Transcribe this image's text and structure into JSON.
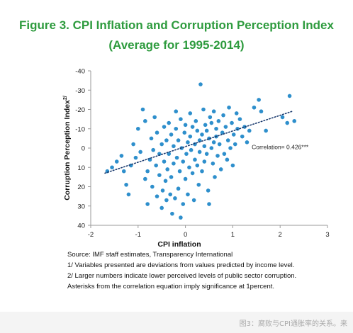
{
  "title": {
    "line1": "Figure 3. CPI Inflation and Corruption Perception Index",
    "line2": "(Average for 1995-2014)"
  },
  "colors": {
    "title": "#2e9b3e",
    "points": "#2e8fcc",
    "trend": "#1a3a6e"
  },
  "chart_data": {
    "type": "scatter",
    "xlabel": "CPI inflation",
    "ylabel": "Corruption Perception Index",
    "ylabel_superscript": "2/",
    "xlim": [
      -2,
      3
    ],
    "ylim": [
      -40,
      40
    ],
    "y_inverted": true,
    "xticks": [
      "-2",
      "-1",
      "0",
      "1",
      "2",
      "3"
    ],
    "yticks": [
      "-40",
      "-30",
      "-20",
      "-10",
      "0",
      "10",
      "20",
      "30",
      "40"
    ],
    "grid": false,
    "annotation": "Correlation=  0.426***",
    "trendline": {
      "style": "dotted",
      "x": [
        -1.7,
        2.25
      ],
      "y": [
        13.0,
        -19.0
      ]
    },
    "points": [
      [
        -1.65,
        12
      ],
      [
        -1.55,
        10
      ],
      [
        -1.45,
        7
      ],
      [
        -1.35,
        4
      ],
      [
        -1.3,
        12
      ],
      [
        -1.25,
        19
      ],
      [
        -1.2,
        24
      ],
      [
        -1.15,
        9
      ],
      [
        -1.1,
        -2
      ],
      [
        -1.05,
        5
      ],
      [
        -1.0,
        -10
      ],
      [
        -0.95,
        2
      ],
      [
        -0.9,
        -20
      ],
      [
        -0.85,
        -14
      ],
      [
        -0.85,
        16
      ],
      [
        -0.8,
        12
      ],
      [
        -0.8,
        29
      ],
      [
        -0.75,
        6
      ],
      [
        -0.72,
        -5
      ],
      [
        -0.7,
        20
      ],
      [
        -0.68,
        1
      ],
      [
        -0.65,
        -16
      ],
      [
        -0.62,
        9
      ],
      [
        -0.6,
        25
      ],
      [
        -0.6,
        -8
      ],
      [
        -0.55,
        3
      ],
      [
        -0.55,
        14
      ],
      [
        -0.5,
        -2
      ],
      [
        -0.5,
        31
      ],
      [
        -0.48,
        22
      ],
      [
        -0.45,
        -11
      ],
      [
        -0.45,
        7
      ],
      [
        -0.42,
        17
      ],
      [
        -0.4,
        -4
      ],
      [
        -0.4,
        27
      ],
      [
        -0.38,
        11
      ],
      [
        -0.35,
        -13
      ],
      [
        -0.35,
        3
      ],
      [
        -0.32,
        24
      ],
      [
        -0.3,
        -7
      ],
      [
        -0.3,
        15
      ],
      [
        -0.28,
        34
      ],
      [
        -0.25,
        -1
      ],
      [
        -0.25,
        8
      ],
      [
        -0.22,
        26
      ],
      [
        -0.2,
        -19
      ],
      [
        -0.2,
        -10
      ],
      [
        -0.18,
        5
      ],
      [
        -0.15,
        21
      ],
      [
        -0.15,
        -4
      ],
      [
        -0.12,
        12
      ],
      [
        -0.1,
        36
      ],
      [
        -0.1,
        -15
      ],
      [
        -0.08,
        0
      ],
      [
        -0.05,
        7
      ],
      [
        -0.05,
        29
      ],
      [
        -0.02,
        -8
      ],
      [
        0.0,
        -12
      ],
      [
        0.0,
        16
      ],
      [
        0.02,
        3
      ],
      [
        0.05,
        -3
      ],
      [
        0.05,
        24
      ],
      [
        0.08,
        10
      ],
      [
        0.1,
        -6
      ],
      [
        0.1,
        -18
      ],
      [
        0.12,
        1
      ],
      [
        0.15,
        13
      ],
      [
        0.15,
        -11
      ],
      [
        0.18,
        27
      ],
      [
        0.2,
        6
      ],
      [
        0.2,
        -2
      ],
      [
        0.22,
        -14
      ],
      [
        0.25,
        9
      ],
      [
        0.25,
        -9
      ],
      [
        0.28,
        19
      ],
      [
        0.3,
        -4
      ],
      [
        0.3,
        2
      ],
      [
        0.32,
        -33
      ],
      [
        0.35,
        -7
      ],
      [
        0.35,
        12
      ],
      [
        0.38,
        -20
      ],
      [
        0.4,
        -1
      ],
      [
        0.4,
        7
      ],
      [
        0.42,
        -12
      ],
      [
        0.45,
        3
      ],
      [
        0.45,
        -9
      ],
      [
        0.48,
        22
      ],
      [
        0.5,
        -5
      ],
      [
        0.5,
        29
      ],
      [
        0.52,
        -16
      ],
      [
        0.55,
        0
      ],
      [
        0.55,
        -13
      ],
      [
        0.58,
        8
      ],
      [
        0.6,
        -3
      ],
      [
        0.6,
        -19
      ],
      [
        0.62,
        15
      ],
      [
        0.65,
        -6
      ],
      [
        0.65,
        -10
      ],
      [
        0.68,
        4
      ],
      [
        0.7,
        -14
      ],
      [
        0.72,
        -2
      ],
      [
        0.75,
        11
      ],
      [
        0.78,
        -8
      ],
      [
        0.8,
        -17
      ],
      [
        0.82,
        3
      ],
      [
        0.85,
        -11
      ],
      [
        0.88,
        6
      ],
      [
        0.9,
        -4
      ],
      [
        0.92,
        -21
      ],
      [
        0.95,
        0
      ],
      [
        0.98,
        -13
      ],
      [
        1.0,
        9
      ],
      [
        1.02,
        -7
      ],
      [
        1.05,
        -2
      ],
      [
        1.08,
        -18
      ],
      [
        1.1,
        -10
      ],
      [
        1.15,
        -15
      ],
      [
        1.2,
        -6
      ],
      [
        1.25,
        -11
      ],
      [
        1.3,
        -3
      ],
      [
        1.35,
        -9
      ],
      [
        1.45,
        -21
      ],
      [
        1.55,
        -25
      ],
      [
        1.6,
        -19
      ],
      [
        1.7,
        -9
      ],
      [
        2.05,
        -16
      ],
      [
        2.15,
        -13
      ],
      [
        2.2,
        -27
      ],
      [
        2.3,
        -14
      ]
    ]
  },
  "notes": {
    "source": "Source: IMF staff estimates,  Transparency International",
    "note1": "1/ Variables presented are deviations  from values predicted  by income level.",
    "note2": "2/ Larger numbers indicate  lower perceived levels of public sector  corruption.",
    "note3": "Asterisks  from  the correlation equation  imply significance  at 1percent."
  },
  "footer": {
    "caption": "图3：腐败与CPI通胀率的关系。来"
  }
}
